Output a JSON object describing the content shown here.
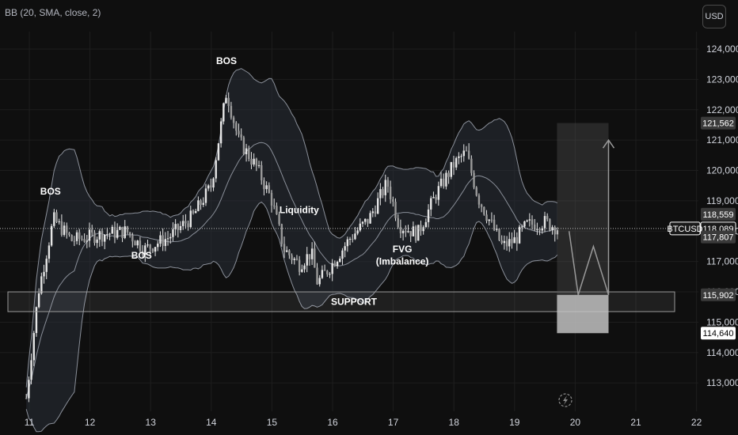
{
  "indicator_label": "BB (20, SMA, close, 2)",
  "currency_label": "USD",
  "symbol": "BTCUSD",
  "colors": {
    "background": "#0f0f0f",
    "grid": "#1e1e1e",
    "candle": "#e6e6e6",
    "band_fill": "#2a2f38",
    "band_line": "#8a8f99",
    "box": "#5a5a5a"
  },
  "chart_data": {
    "type": "candlestick",
    "x_ticks": [
      "11",
      "12",
      "13",
      "14",
      "15",
      "16",
      "17",
      "18",
      "19",
      "20",
      "21",
      "22"
    ],
    "y_ticks": [
      "113,000",
      "114,000",
      "115,000",
      "116,000",
      "117,000",
      "118,000",
      "119,000",
      "120,000",
      "121,000",
      "122,000",
      "123,000",
      "124,000"
    ],
    "ylim": [
      112400,
      124700
    ],
    "price_tags": [
      {
        "label": "121,562",
        "value": 121562,
        "style": "grey"
      },
      {
        "label": "118,559",
        "value": 118559,
        "style": "grey"
      },
      {
        "label": "118,089",
        "value": 118089,
        "style": "last"
      },
      {
        "label": "117,807",
        "value": 117807,
        "style": "grey"
      },
      {
        "label": "115,902",
        "value": 115902,
        "style": "grey"
      },
      {
        "label": "114,640",
        "value": 114640,
        "style": "white"
      }
    ],
    "last_price_label": "BTCUSD",
    "annotations": [
      {
        "text": "BOS",
        "day": 11.35,
        "value": 119200
      },
      {
        "text": "BOS",
        "day": 12.85,
        "value": 117100
      },
      {
        "text": "BOS",
        "day": 14.25,
        "value": 123500
      },
      {
        "text": "Liquidity",
        "day": 15.45,
        "value": 118600
      },
      {
        "text": "FVG",
        "day": 17.15,
        "value": 117300
      },
      {
        "text": "(Imbalance)",
        "day": 17.15,
        "value": 116900
      }
    ],
    "support": {
      "label": "SUPPORT",
      "value_top": 116000,
      "value_bottom": 115350
    },
    "projection": {
      "box_value_top": 121562,
      "box_value_bottom": 114640,
      "box_day_start": 19.7,
      "box_day_end": 20.55,
      "path": [
        [
          19.9,
          118000
        ],
        [
          20.05,
          115900
        ],
        [
          20.3,
          117500
        ],
        [
          20.55,
          115900
        ],
        [
          20.55,
          121000
        ]
      ]
    }
  }
}
